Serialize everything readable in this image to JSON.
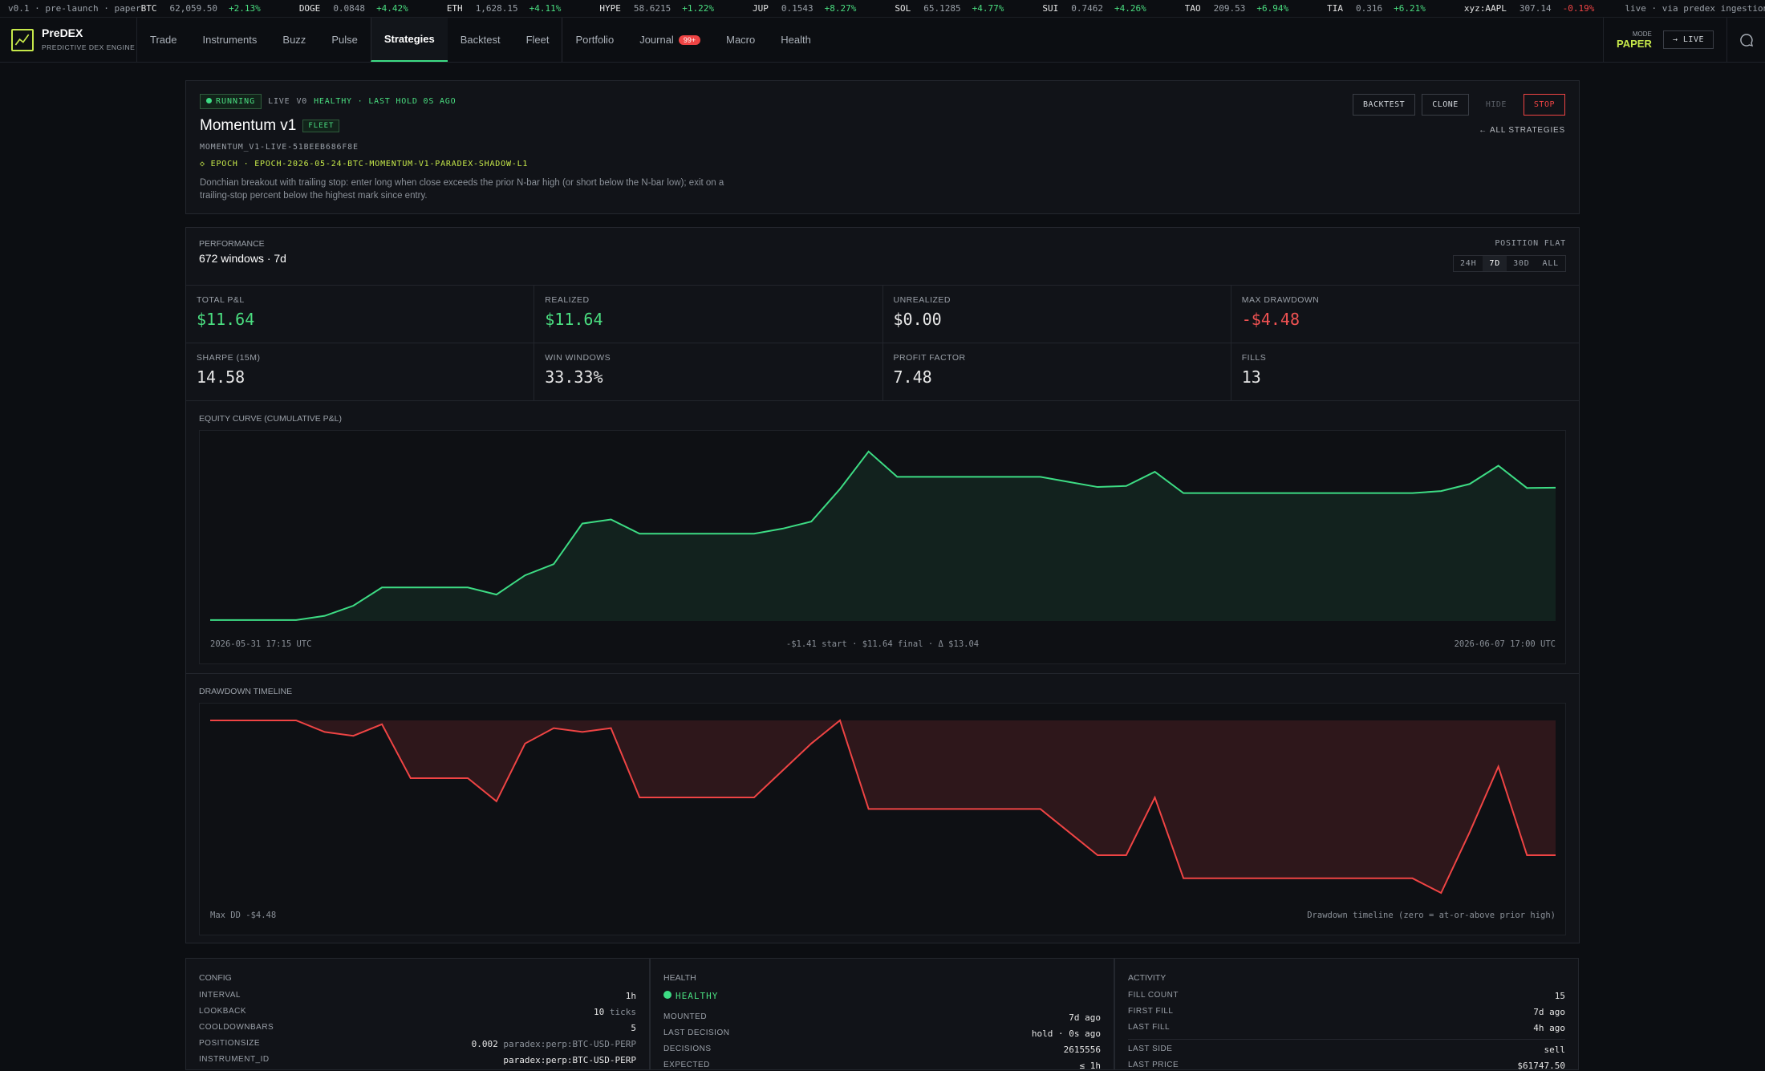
{
  "ticker": {
    "left": "v0.1 · pre-launch · paper",
    "right": "live · via predex ingestion",
    "items": [
      {
        "sym": "BTC",
        "price": "62,059.50",
        "change": "+2.13%"
      },
      {
        "sym": "DOGE",
        "price": "0.0848",
        "change": "+4.42%"
      },
      {
        "sym": "ETH",
        "price": "1,628.15",
        "change": "+4.11%"
      },
      {
        "sym": "HYPE",
        "price": "58.6215",
        "change": "+1.22%"
      },
      {
        "sym": "JUP",
        "price": "0.1543",
        "change": "+8.27%"
      },
      {
        "sym": "SOL",
        "price": "65.1285",
        "change": "+4.77%"
      },
      {
        "sym": "SUI",
        "price": "0.7462",
        "change": "+4.26%"
      },
      {
        "sym": "TAO",
        "price": "209.53",
        "change": "+6.94%"
      },
      {
        "sym": "TIA",
        "price": "0.316",
        "change": "+6.21%"
      },
      {
        "sym": "xyz:AAPL",
        "price": "307.14",
        "change": "-0.19%",
        "color": "#ef4444"
      }
    ]
  },
  "nav": {
    "brand": "PreDEX",
    "tagline": "PREDICTIVE DEX ENGINE",
    "tabs": [
      "Trade",
      "Instruments",
      "Buzz",
      "Pulse",
      "Strategies",
      "Backtest",
      "Fleet",
      "Portfolio",
      "Journal",
      "Macro",
      "Health"
    ],
    "active": "Strategies",
    "badge": "99+",
    "mode_label": "MODE",
    "mode": "PAPER",
    "live_button": "→ LIVE"
  },
  "strategy": {
    "status": "RUNNING",
    "live": "LIVE",
    "version": "V0",
    "health": "HEALTHY · LAST HOLD 0S AGO",
    "title": "Momentum v1",
    "tag": "FLEET",
    "id": "MOMENTUM_V1-LIVE-51BEEB686F8E",
    "epoch": "◇ EPOCH · EPOCH-2026-05-24-BTC-MOMENTUM-V1-PARADEX-SHADOW-L1",
    "description": "Donchian breakout with trailing stop: enter long when close exceeds the prior N-bar high (or short below the N-bar low); exit on a trailing-stop percent below the highest mark since entry.",
    "buttons": [
      "BACKTEST",
      "CLONE",
      "HIDE",
      "STOP"
    ],
    "back_link": "← ALL STRATEGIES"
  },
  "performance": {
    "label": "PERFORMANCE",
    "windows": "672 windows · 7d",
    "position": "POSITION FLAT",
    "ranges": [
      "24H",
      "7D",
      "30D",
      "ALL"
    ],
    "active_range": "7D",
    "metrics": [
      {
        "label": "TOTAL P&L",
        "value": "$11.64",
        "color": "#4ade80"
      },
      {
        "label": "REALIZED",
        "value": "$11.64",
        "color": "#4ade80"
      },
      {
        "label": "UNREALIZED",
        "value": "$0.00"
      },
      {
        "label": "MAX DRAWDOWN",
        "value": "-$4.48",
        "color": "#f05252"
      },
      {
        "label": "SHARPE (15M)",
        "value": "14.58"
      },
      {
        "label": "WIN WINDOWS",
        "value": "33.33%"
      },
      {
        "label": "PROFIT FACTOR",
        "value": "7.48"
      },
      {
        "label": "FILLS",
        "value": "13"
      }
    ]
  },
  "equity_curve": {
    "type": "line",
    "title": "EQUITY CURVE (CUMULATIVE P&L)",
    "start_label": "2026-05-31 17:15 UTC",
    "summary": "-$1.41 start · $11.64 final · Δ $13.04",
    "end_label": "2026-06-07 17:00 UTC",
    "color": "#3ddc84",
    "ylim": [
      -1.5,
      15.5
    ],
    "values": [
      -1.41,
      -1.41,
      -1.41,
      -1.41,
      -1.0,
      0.0,
      1.8,
      1.8,
      1.8,
      1.8,
      1.1,
      3.0,
      4.1,
      8.1,
      8.5,
      7.1,
      7.1,
      7.1,
      7.1,
      7.1,
      7.6,
      8.3,
      11.5,
      15.2,
      12.7,
      12.7,
      12.7,
      12.7,
      12.7,
      12.7,
      12.2,
      11.7,
      11.8,
      13.2,
      11.1,
      11.1,
      11.1,
      11.1,
      11.1,
      11.1,
      11.1,
      11.1,
      11.1,
      11.3,
      12.0,
      13.8,
      11.6,
      11.64
    ]
  },
  "drawdown": {
    "type": "line",
    "title": "DRAWDOWN TIMELINE",
    "max_label": "Max DD -$4.48",
    "note": "Drawdown timeline (zero = at-or-above prior high)",
    "color": "#ef4444",
    "ylim": [
      -4.5,
      0
    ],
    "values": [
      0,
      0,
      0,
      0,
      -0.3,
      -0.4,
      -0.1,
      -1.5,
      -1.5,
      -1.5,
      -2.1,
      -0.6,
      -0.2,
      -0.3,
      -0.2,
      -2.0,
      -2.0,
      -2.0,
      -2.0,
      -2.0,
      -1.3,
      -0.6,
      0,
      -2.3,
      -2.3,
      -2.3,
      -2.3,
      -2.3,
      -2.3,
      -2.3,
      -2.9,
      -3.5,
      -3.5,
      -2.0,
      -4.1,
      -4.1,
      -4.1,
      -4.1,
      -4.1,
      -4.1,
      -4.1,
      -4.1,
      -4.1,
      -4.48,
      -2.9,
      -1.2,
      -3.5,
      -3.5
    ]
  },
  "panels": [
    {
      "title": "CONFIG",
      "rows": [
        {
          "label": "INTERVAL",
          "value": "1h"
        },
        {
          "label": "LOOKBACK",
          "value": "10",
          "note": "ticks"
        },
        {
          "label": "COOLDOWNBARS",
          "value": "5"
        },
        {
          "label": "POSITIONSIZE",
          "value": "0.002",
          "note": "paradex:perp:BTC-USD-PERP"
        },
        {
          "label": "INSTRUMENT_ID",
          "value": "paradex:perp:BTC-USD-PERP"
        }
      ]
    },
    {
      "title": "HEALTH",
      "status": "HEALTHY",
      "rows": [
        {
          "label": "MOUNTED",
          "value": "7d ago"
        },
        {
          "label": "LAST DECISION",
          "value": "hold · 0s ago"
        },
        {
          "label": "DECISIONS",
          "value": "2615556"
        },
        {
          "label": "EXPECTED",
          "value": "≤ 1h"
        }
      ]
    },
    {
      "title": "ACTIVITY",
      "rows": [
        {
          "label": "FILL COUNT",
          "value": "15"
        },
        {
          "label": "FIRST FILL",
          "value": "7d ago"
        },
        {
          "label": "LAST FILL",
          "value": "4h ago"
        },
        {
          "label": "LAST SIDE",
          "value": "sell"
        },
        {
          "label": "LAST PRICE",
          "value": "$61747.50"
        }
      ]
    }
  ]
}
